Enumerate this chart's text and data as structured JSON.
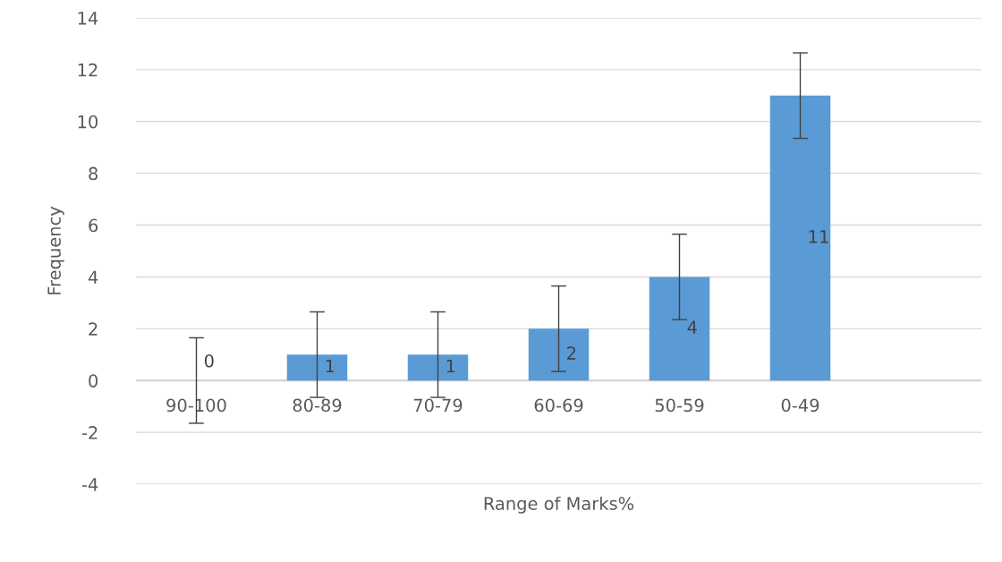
{
  "chart_data": {
    "type": "bar",
    "xlabel": "Range of Marks%",
    "ylabel": "Frequency",
    "categories": [
      "90-100",
      "80-89",
      "70-79",
      "60-69",
      "50-59",
      "0-49",
      null
    ],
    "values": [
      0,
      1,
      1,
      2,
      4,
      11,
      null
    ],
    "errors": [
      1.65,
      1.65,
      1.65,
      1.65,
      1.65,
      1.65,
      null
    ],
    "color": "#5b9bd5",
    "ylim": [
      -4,
      14
    ],
    "yticks": [
      -4,
      -2,
      0,
      2,
      4,
      6,
      8,
      10,
      12,
      14
    ],
    "grid": "y",
    "data_labels": true
  }
}
